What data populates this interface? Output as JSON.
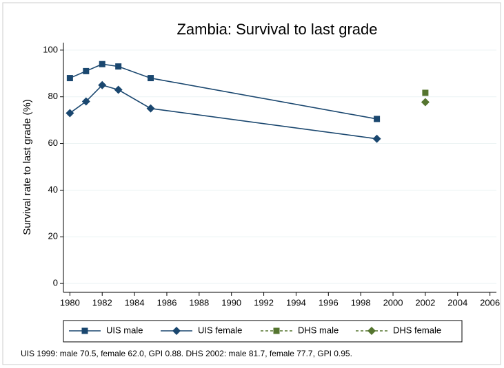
{
  "chart_data": {
    "type": "line",
    "title": "Zambia: Survival to last grade",
    "y_label": "Survival rate to last grade (%)",
    "note": "UIS 1999: male 70.5, female 62.0, GPI 0.88. DHS 2002: male 81.7, female 77.7, GPI 0.95.",
    "x": [
      1980,
      1981,
      1982,
      1983,
      1985,
      1999,
      2002
    ],
    "series": [
      {
        "name": "UIS male",
        "color": "#1a476f",
        "marker": "square",
        "linestyle": "solid",
        "values": [
          88,
          91,
          94,
          93,
          88,
          70.5,
          null
        ]
      },
      {
        "name": "UIS female",
        "color": "#1a476f",
        "marker": "diamond",
        "linestyle": "solid",
        "values": [
          73,
          78,
          85,
          83,
          75,
          62.0,
          null
        ]
      },
      {
        "name": "DHS male",
        "color": "#55752f",
        "marker": "square",
        "linestyle": "dashed",
        "values": [
          null,
          null,
          null,
          null,
          null,
          null,
          81.7
        ]
      },
      {
        "name": "DHS female",
        "color": "#55752f",
        "marker": "diamond",
        "linestyle": "dashed",
        "values": [
          null,
          null,
          null,
          null,
          null,
          null,
          77.7
        ]
      }
    ],
    "xlim": [
      1979.6,
      2006.4
    ],
    "xticks": [
      1980,
      1982,
      1984,
      1986,
      1988,
      1990,
      1992,
      1994,
      1996,
      1998,
      2000,
      2002,
      2004,
      2006
    ],
    "ylim": [
      -3.8,
      103.2
    ],
    "yticks": [
      0,
      20,
      40,
      60,
      80,
      100
    ],
    "grid": true,
    "legend": "bottom"
  }
}
